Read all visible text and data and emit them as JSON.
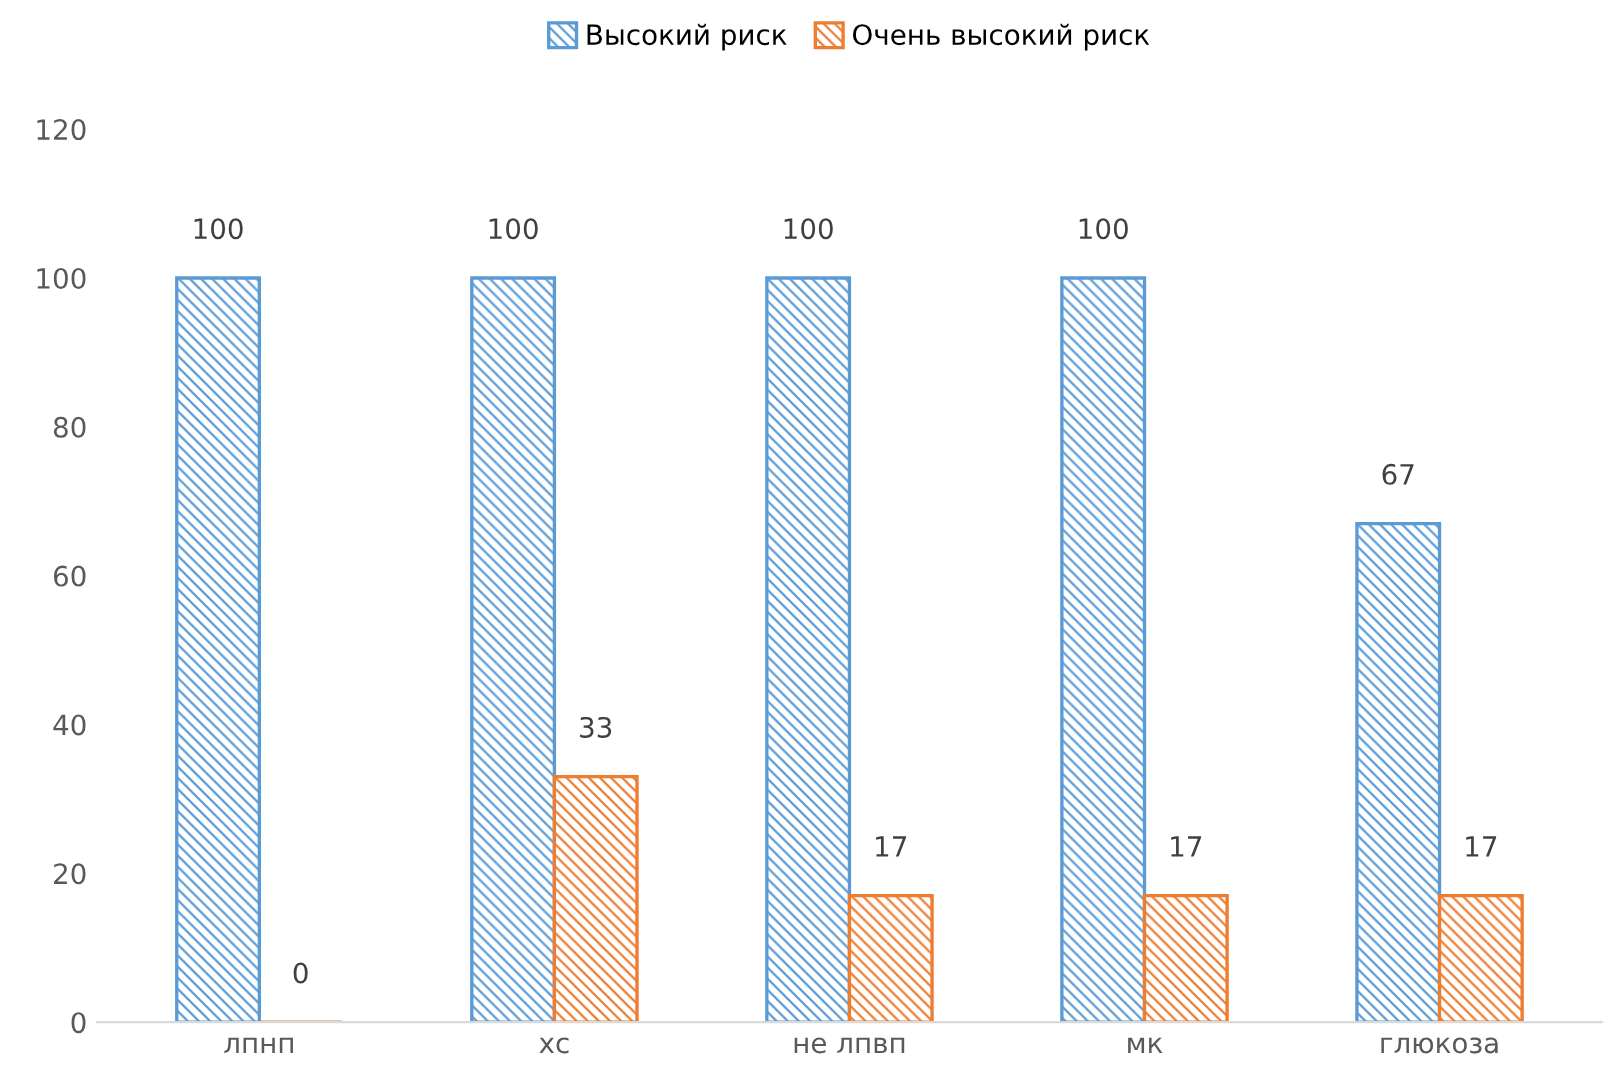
{
  "chart_data": {
    "type": "bar",
    "categories": [
      "лпнп",
      "хс",
      "не лпвп",
      "мк",
      "глюкоза"
    ],
    "series": [
      {
        "name": "Высокий риск",
        "color": "#5b9bd5",
        "values": [
          100,
          100,
          100,
          100,
          67
        ]
      },
      {
        "name": "Очень высокий риск",
        "color": "#ed7d31",
        "values": [
          0,
          33,
          17,
          17,
          17
        ]
      }
    ],
    "ylim": [
      0,
      120
    ],
    "yticks": [
      0,
      20,
      40,
      60,
      80,
      100,
      120
    ],
    "data_labels": true,
    "legend": "top",
    "grid": false
  }
}
